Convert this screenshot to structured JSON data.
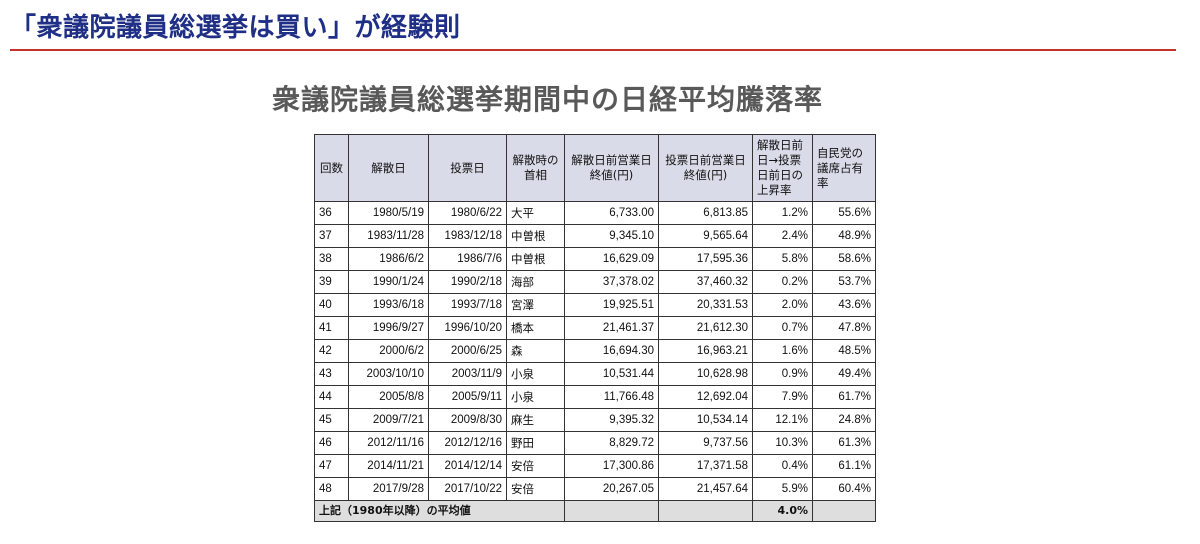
{
  "slide": {
    "title": "「衆議院議員総選挙は買い」が経験則"
  },
  "table": {
    "heading": "衆議院議員総選挙期間中の日経平均騰落率",
    "headers": {
      "number": "回数",
      "dissolution_date": "解散日",
      "voting_date": "投票日",
      "pm": "解散時の首相",
      "close_before_dissolution": "解散日前営業日終値(円)",
      "close_before_voting": "投票日前営業日終値(円)",
      "rise_rate": "解散日前日→投票日前日の上昇率",
      "ldp_share": "自民党の議席占有率"
    },
    "rows": [
      {
        "number": "36",
        "dissolution_date": "1980/5/19",
        "voting_date": "1980/6/22",
        "pm": "大平",
        "close_before_dissolution": "6,733.00",
        "close_before_voting": "6,813.85",
        "rise_rate": "1.2%",
        "ldp_share": "55.6%"
      },
      {
        "number": "37",
        "dissolution_date": "1983/11/28",
        "voting_date": "1983/12/18",
        "pm": "中曽根",
        "close_before_dissolution": "9,345.10",
        "close_before_voting": "9,565.64",
        "rise_rate": "2.4%",
        "ldp_share": "48.9%"
      },
      {
        "number": "38",
        "dissolution_date": "1986/6/2",
        "voting_date": "1986/7/6",
        "pm": "中曽根",
        "close_before_dissolution": "16,629.09",
        "close_before_voting": "17,595.36",
        "rise_rate": "5.8%",
        "ldp_share": "58.6%"
      },
      {
        "number": "39",
        "dissolution_date": "1990/1/24",
        "voting_date": "1990/2/18",
        "pm": "海部",
        "close_before_dissolution": "37,378.02",
        "close_before_voting": "37,460.32",
        "rise_rate": "0.2%",
        "ldp_share": "53.7%"
      },
      {
        "number": "40",
        "dissolution_date": "1993/6/18",
        "voting_date": "1993/7/18",
        "pm": "宮澤",
        "close_before_dissolution": "19,925.51",
        "close_before_voting": "20,331.53",
        "rise_rate": "2.0%",
        "ldp_share": "43.6%"
      },
      {
        "number": "41",
        "dissolution_date": "1996/9/27",
        "voting_date": "1996/10/20",
        "pm": "橋本",
        "close_before_dissolution": "21,461.37",
        "close_before_voting": "21,612.30",
        "rise_rate": "0.7%",
        "ldp_share": "47.8%"
      },
      {
        "number": "42",
        "dissolution_date": "2000/6/2",
        "voting_date": "2000/6/25",
        "pm": "森",
        "close_before_dissolution": "16,694.30",
        "close_before_voting": "16,963.21",
        "rise_rate": "1.6%",
        "ldp_share": "48.5%"
      },
      {
        "number": "43",
        "dissolution_date": "2003/10/10",
        "voting_date": "2003/11/9",
        "pm": "小泉",
        "close_before_dissolution": "10,531.44",
        "close_before_voting": "10,628.98",
        "rise_rate": "0.9%",
        "ldp_share": "49.4%"
      },
      {
        "number": "44",
        "dissolution_date": "2005/8/8",
        "voting_date": "2005/9/11",
        "pm": "小泉",
        "close_before_dissolution": "11,766.48",
        "close_before_voting": "12,692.04",
        "rise_rate": "7.9%",
        "ldp_share": "61.7%"
      },
      {
        "number": "45",
        "dissolution_date": "2009/7/21",
        "voting_date": "2009/8/30",
        "pm": "麻生",
        "close_before_dissolution": "9,395.32",
        "close_before_voting": "10,534.14",
        "rise_rate": "12.1%",
        "ldp_share": "24.8%"
      },
      {
        "number": "46",
        "dissolution_date": "2012/11/16",
        "voting_date": "2012/12/16",
        "pm": "野田",
        "close_before_dissolution": "8,829.72",
        "close_before_voting": "9,737.56",
        "rise_rate": "10.3%",
        "ldp_share": "61.3%"
      },
      {
        "number": "47",
        "dissolution_date": "2014/11/21",
        "voting_date": "2014/12/14",
        "pm": "安倍",
        "close_before_dissolution": "17,300.86",
        "close_before_voting": "17,371.58",
        "rise_rate": "0.4%",
        "ldp_share": "61.1%"
      },
      {
        "number": "48",
        "dissolution_date": "2017/9/28",
        "voting_date": "2017/10/22",
        "pm": "安倍",
        "close_before_dissolution": "20,267.05",
        "close_before_voting": "21,457.64",
        "rise_rate": "5.9%",
        "ldp_share": "60.4%"
      }
    ],
    "footer": {
      "label": "上記（1980年以降）の平均値",
      "average_rise_rate": "4.0%"
    }
  },
  "colors": {
    "title": "#1f2f86",
    "rule": "#c9312e",
    "heading": "#595959",
    "header_bg": "#d9dbe8",
    "footer_bg": "#dedede"
  }
}
